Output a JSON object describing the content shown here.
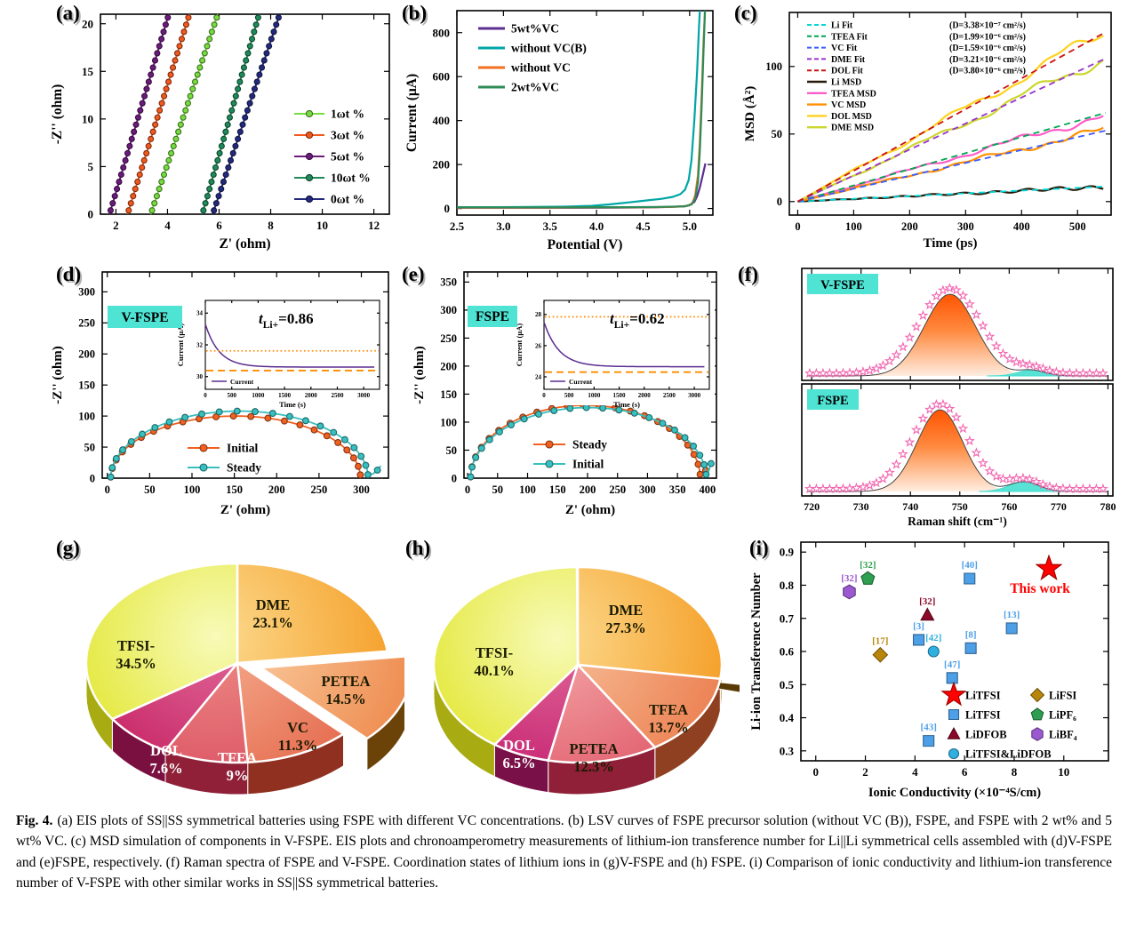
{
  "figure": {
    "caption_label": "Fig. 4.",
    "caption_text": "(a) EIS plots of SS||SS symmetrical batteries using FSPE with different VC concentrations. (b) LSV curves of FSPE precursor solution (without VC (B)), FSPE, and FSPE with 2 wt% and 5 wt% VC. (c) MSD simulation of components in V-FSPE. EIS plots and chronoamperometry measurements of lithium-ion transference number for Li||Li symmetrical cells assembled with (d)V-FSPE and (e)FSPE, respectively. (f) Raman spectra of FSPE and V-FSPE. Coordination states of lithium ions in (g)V-FSPE and (h) FSPE. (i) Comparison of ionic conductivity and lithium-ion transference number of V-FSPE with other similar works in SS||SS symmetrical batteries."
  },
  "panel_letters": {
    "a": "(a)",
    "b": "(b)",
    "c": "(c)",
    "d": "(d)",
    "e": "(e)",
    "f": "(f)",
    "g": "(g)",
    "h": "(h)",
    "i": "(i)"
  },
  "chart_data": [
    {
      "panel": "a",
      "type": "line",
      "xlabel": "Z' (ohm)",
      "ylabel": "-Z'' (ohm)",
      "xlim": [
        1.4,
        12.6
      ],
      "xticks": [
        2,
        4,
        6,
        8,
        10,
        12
      ],
      "ylim": [
        0,
        21
      ],
      "yticks": [
        0,
        5,
        10,
        15,
        20
      ],
      "series": [
        {
          "name": "1ωt %",
          "color": "#77DC3F",
          "x_at_y0": 3.35,
          "x_at_ymax": 5.95
        },
        {
          "name": "3ωt %",
          "color": "#F2591E",
          "x_at_y0": 2.45,
          "x_at_ymax": 4.85
        },
        {
          "name": "5ωt %",
          "color": "#6B1B7B",
          "x_at_y0": 1.75,
          "x_at_ymax": 4.05
        },
        {
          "name": "10ωt %",
          "color": "#1F8A5A",
          "x_at_y0": 5.35,
          "x_at_ymax": 7.55
        },
        {
          "name": "0ωt %",
          "color": "#232A7D",
          "x_at_y0": 5.75,
          "x_at_ymax": 8.35
        }
      ]
    },
    {
      "panel": "b",
      "type": "line",
      "xlabel": "Potential (V)",
      "ylabel": "Current (µA)",
      "xlim": [
        2.5,
        5.25
      ],
      "xticks": [
        2.5,
        3.0,
        3.5,
        4.0,
        4.5,
        5.0
      ],
      "xtick_labels": [
        "2.5",
        "3.0",
        "3.5",
        "4.0",
        "4.5",
        "5.0"
      ],
      "ylim": [
        -30,
        900
      ],
      "yticks": [
        0,
        200,
        400,
        600,
        800
      ],
      "series": [
        {
          "name": "5wt%VC",
          "color": "#5C2D91",
          "points": [
            [
              2.5,
              3
            ],
            [
              3.2,
              3
            ],
            [
              3.8,
              3
            ],
            [
              4.2,
              4
            ],
            [
              4.6,
              5
            ],
            [
              4.8,
              7
            ],
            [
              4.95,
              10
            ],
            [
              5.0,
              15
            ],
            [
              5.05,
              30
            ],
            [
              5.08,
              55
            ],
            [
              5.11,
              95
            ],
            [
              5.14,
              150
            ],
            [
              5.17,
              205
            ]
          ]
        },
        {
          "name": "without VC(B)",
          "color": "#00A5A5",
          "points": [
            [
              2.5,
              6
            ],
            [
              2.9,
              6
            ],
            [
              3.3,
              7
            ],
            [
              3.7,
              9
            ],
            [
              3.95,
              12
            ],
            [
              4.15,
              19
            ],
            [
              4.35,
              28
            ],
            [
              4.55,
              37
            ],
            [
              4.7,
              44
            ],
            [
              4.82,
              53
            ],
            [
              4.9,
              65
            ],
            [
              4.95,
              85
            ],
            [
              4.99,
              130
            ],
            [
              5.02,
              220
            ],
            [
              5.05,
              400
            ],
            [
              5.08,
              620
            ],
            [
              5.1,
              820
            ],
            [
              5.11,
              900
            ]
          ]
        },
        {
          "name": "without VC",
          "color": "#F07020",
          "points": [
            [
              2.5,
              4
            ],
            [
              3.5,
              4
            ],
            [
              4.2,
              5
            ],
            [
              4.6,
              6
            ],
            [
              4.85,
              8
            ],
            [
              4.98,
              12
            ],
            [
              5.03,
              25
            ],
            [
              5.06,
              60
            ],
            [
              5.09,
              150
            ],
            [
              5.11,
              300
            ],
            [
              5.13,
              520
            ],
            [
              5.15,
              760
            ],
            [
              5.165,
              900
            ]
          ]
        },
        {
          "name": "2wt%VC",
          "color": "#2E8B57",
          "points": [
            [
              2.5,
              5
            ],
            [
              3.5,
              5
            ],
            [
              4.3,
              6
            ],
            [
              4.7,
              7
            ],
            [
              4.95,
              10
            ],
            [
              5.02,
              18
            ],
            [
              5.06,
              45
            ],
            [
              5.09,
              120
            ],
            [
              5.11,
              260
            ],
            [
              5.13,
              470
            ],
            [
              5.15,
              720
            ],
            [
              5.165,
              900
            ]
          ]
        }
      ]
    },
    {
      "panel": "c",
      "type": "msd",
      "xlabel": "Time (ps)",
      "ylabel": "MSD (Å²)",
      "xlim": [
        -15,
        560
      ],
      "xticks": [
        0,
        100,
        200,
        300,
        400,
        500
      ],
      "ylim": [
        -10,
        140
      ],
      "yticks": [
        0,
        50,
        100
      ],
      "fits": [
        {
          "name": "Li Fit",
          "d_label": "(D=3.38×10⁻⁷ cm²/s)",
          "color": "#00D8D8",
          "msd_at_550": 11.2
        },
        {
          "name": "TFEA Fit",
          "d_label": "(D=1.99×10⁻⁶ cm²/s)",
          "color": "#00A550",
          "msd_at_550": 65.7
        },
        {
          "name": "VC Fit",
          "d_label": "(D=1.59×10⁻⁶ cm²/s)",
          "color": "#3A5BFF",
          "msd_at_550": 52.5
        },
        {
          "name": "DME Fit",
          "d_label": "(D=3.21×10⁻⁶ cm²/s)",
          "color": "#9932CC",
          "msd_at_550": 105.9
        },
        {
          "name": "DOL Fit",
          "d_label": "(D=3.80×10⁻⁶ cm²/s)",
          "color": "#CC1111",
          "msd_at_550": 125.4
        }
      ],
      "msd_series": [
        {
          "name": "Li MSD",
          "color": "#2B1A0A",
          "msd_at_550": 11.0
        },
        {
          "name": "TFEA MSD",
          "color": "#FF5CC8",
          "msd_at_550": 64.0
        },
        {
          "name": "VC MSD",
          "color": "#FF9000",
          "msd_at_550": 53.5
        },
        {
          "name": "DOL MSD",
          "color": "#FFD21E",
          "msd_at_550": 126.0
        },
        {
          "name": "DME MSD",
          "color": "#CBD62E",
          "msd_at_550": 107.0
        }
      ]
    },
    {
      "panel": "d",
      "type": "nyquist",
      "title": "V-FSPE",
      "transference": {
        "prefix": "t",
        "sub": "Li+",
        "value": "=0.86"
      },
      "xlabel": "Z' (ohm)",
      "ylabel": "-Z'' (ohm)",
      "xlim": [
        -6,
        332
      ],
      "xticks": [
        0,
        50,
        100,
        150,
        200,
        250,
        300
      ],
      "ylim": [
        0,
        332
      ],
      "yticks": [
        0,
        50,
        100,
        150,
        200,
        250,
        300
      ],
      "series": [
        {
          "name": "Initial",
          "color": "#F06020",
          "start": 4,
          "end": 299,
          "peak": 100,
          "tail": []
        },
        {
          "name": "Steady",
          "color": "#38BFBF",
          "start": 4,
          "end": 308,
          "peak": 108,
          "tail": [
            [
              314,
              7
            ],
            [
              319,
              13
            ],
            [
              323,
              20
            ]
          ]
        }
      ],
      "inset": {
        "xlabel": "Time (s)",
        "ylabel": "Current (µA)",
        "legend_label": "Current",
        "xlim": [
          0,
          3300
        ],
        "xticks": [
          0,
          500,
          1000,
          1500,
          2000,
          2500,
          3000
        ],
        "ylim": [
          29.2,
          34.8
        ],
        "yticks": [
          30,
          32,
          34
        ],
        "line_color": "#5C2D91",
        "ref_color": "#FF8C00",
        "i_start": 33.3,
        "i_steady": 30.6,
        "tau": 260,
        "dotted_ref": 31.62,
        "dashed_ref": 30.38
      }
    },
    {
      "panel": "e",
      "type": "nyquist",
      "title": "FSPE",
      "transference": {
        "prefix": "t",
        "sub": "Li+",
        "value": "=0.62"
      },
      "xlabel": "Z' (ohm)",
      "ylabel": "-Z'' (ohm)",
      "xlim": [
        -6,
        415
      ],
      "xticks": [
        0,
        50,
        100,
        150,
        200,
        250,
        300,
        350,
        400
      ],
      "ylim": [
        0,
        368
      ],
      "yticks": [
        0,
        50,
        100,
        150,
        200,
        250,
        300,
        350
      ],
      "series": [
        {
          "name": "Steady",
          "color": "#F06020",
          "start": 5,
          "end": 388,
          "peak": 130,
          "tail": [
            [
              392,
              6
            ],
            [
              397,
              14
            ]
          ]
        },
        {
          "name": "Initial",
          "color": "#38BFBF",
          "start": 5,
          "end": 398,
          "peak": 126,
          "tail": [
            [
              402,
              12
            ],
            [
              406,
              26
            ]
          ]
        }
      ],
      "inset": {
        "xlabel": "Time (s)",
        "ylabel": "Current (µA)",
        "legend_label": "Current",
        "xlim": [
          0,
          3300
        ],
        "xticks": [
          0,
          500,
          1000,
          1500,
          2000,
          2500,
          3000
        ],
        "ylim": [
          23.2,
          28.9
        ],
        "yticks": [
          24,
          26,
          28
        ],
        "line_color": "#5C2D91",
        "ref_color": "#FF8C00",
        "i_start": 27.5,
        "i_steady": 24.65,
        "tau": 300,
        "dotted_ref": 27.85,
        "dashed_ref": 24.3
      }
    },
    {
      "panel": "f",
      "type": "raman",
      "xlabel": "Raman shift (cm⁻¹)",
      "xlim": [
        718,
        781
      ],
      "xticks": [
        720,
        730,
        740,
        750,
        760,
        770,
        780
      ],
      "spectra": [
        {
          "name": "V-FSPE",
          "peak_center": 748,
          "peak_sigma": 5.2,
          "data_sigma": 6.2,
          "shoulder_center": 764.5,
          "shoulder_sigma": 2.8,
          "shoulder_amp": 0.07
        },
        {
          "name": "FSPE",
          "peak_center": 746,
          "peak_sigma": 4.6,
          "data_sigma": 5.6,
          "shoulder_center": 763,
          "shoulder_sigma": 3.0,
          "shoulder_amp": 0.12
        }
      ],
      "colors": {
        "fill_top": "#FF5400",
        "fill_mid": "#FF8A40",
        "fill_bottom": "#FFEDE0",
        "stars": "#F266B0",
        "shoulder": "#45DFD0",
        "fit_line": "#444444",
        "label_bg": "#4FE3D4"
      }
    },
    {
      "panel": "g",
      "type": "pie",
      "slices": [
        {
          "name": "DME",
          "pct": 23.1,
          "display": "23.1%",
          "inner": "#FCDA8E",
          "outer": "#F5A02A",
          "side": "#B06A10",
          "label_color": "#1a1a00"
        },
        {
          "name": "PETEA",
          "pct": 14.5,
          "display": "14.5%",
          "inner": "#FACDA0",
          "outer": "#EE8C50",
          "side": "#6B4208",
          "label_color": "#1a1a00",
          "exploded": true
        },
        {
          "name": "VC",
          "pct": 11.3,
          "display": "11.3%",
          "inner": "#F6AE90",
          "outer": "#E4674B",
          "side": "#8F3020",
          "label_color": "#1a1a00"
        },
        {
          "name": "TFEA",
          "pct": 9.0,
          "display": "9%",
          "inner": "#EE8C84",
          "outer": "#D84A60",
          "side": "#8F2038",
          "label_color": "#ffffff"
        },
        {
          "name": "DOL",
          "pct": 7.6,
          "display": "7.6%",
          "inner": "#E06898",
          "outer": "#C2185B",
          "side": "#7A1040",
          "label_color": "#ffffff"
        },
        {
          "name": "TFSI-",
          "pct": 34.5,
          "display": "34.5%",
          "inner": "#F8FAB8",
          "outer": "#DFE41F",
          "side": "#A8AC12",
          "label_color": "#1a1a00"
        }
      ],
      "sliver": {
        "side": "#5A3A06"
      }
    },
    {
      "panel": "h",
      "type": "pie",
      "slices": [
        {
          "name": "DME",
          "pct": 27.3,
          "display": "27.3%",
          "inner": "#FCDA8E",
          "outer": "#F5A02A",
          "side": "#B06A10",
          "label_color": "#1a1a00"
        },
        {
          "name": "TFEA",
          "pct": 13.7,
          "display": "13.7%",
          "inner": "#F8C09A",
          "outer": "#EC8254",
          "side": "#8F4020",
          "label_color": "#1a1a00"
        },
        {
          "name": "PETEA",
          "pct": 12.3,
          "display": "12.3%",
          "inner": "#F4A8A8",
          "outer": "#E05A6A",
          "side": "#8F2038",
          "label_color": "#1a1a00"
        },
        {
          "name": "DOL",
          "pct": 6.5,
          "display": "6.5%",
          "inner": "#E06898",
          "outer": "#C2186B",
          "side": "#7A1048",
          "label_color": "#ffffff"
        },
        {
          "name": "TFSI-",
          "pct": 40.1,
          "display": "40.1%",
          "inner": "#F8FAB8",
          "outer": "#DFE41F",
          "side": "#A8AC12",
          "label_color": "#1a1a00"
        }
      ],
      "sliver": {
        "side": "#5A3A06"
      }
    },
    {
      "panel": "i",
      "type": "scatter",
      "xlabel": "Ionic Conductivity (×10⁻⁴S/cm)",
      "ylabel": "Li-ion Transference Number",
      "xlim": [
        -0.6,
        11.8
      ],
      "xticks": [
        0,
        2,
        4,
        6,
        8,
        10
      ],
      "ylim": [
        0.27,
        0.93
      ],
      "yticks": [
        0.3,
        0.4,
        0.5,
        0.6,
        0.7,
        0.8,
        0.9
      ],
      "ytick_labels": [
        "0.3",
        "0.4",
        "0.5",
        "0.6",
        "0.7",
        "0.8",
        "0.9"
      ],
      "points": [
        {
          "marker": "star",
          "color": "#FF0000",
          "x": 9.4,
          "y": 0.85,
          "annotation": "This work"
        },
        {
          "ref": "[40]",
          "marker": "square",
          "color": "#4D9FE8",
          "x": 6.2,
          "y": 0.82
        },
        {
          "ref": "[32]",
          "marker": "pentagon",
          "color": "#2E9E50",
          "x": 2.1,
          "y": 0.82
        },
        {
          "ref": "[32]",
          "marker": "hexagon",
          "color": "#9B59D0",
          "x": 1.35,
          "y": 0.78
        },
        {
          "ref": "[32]",
          "marker": "triangle",
          "color": "#8B0A2A",
          "x": 4.5,
          "y": 0.71
        },
        {
          "ref": "[13]",
          "marker": "square",
          "color": "#4D9FE8",
          "x": 7.9,
          "y": 0.67
        },
        {
          "ref": "[3]",
          "marker": "square",
          "color": "#4D9FE8",
          "x": 4.15,
          "y": 0.635
        },
        {
          "ref": "[8]",
          "marker": "square",
          "color": "#4D9FE8",
          "x": 6.25,
          "y": 0.61
        },
        {
          "ref": "[42]",
          "marker": "circle",
          "color": "#30B0E0",
          "x": 4.75,
          "y": 0.6
        },
        {
          "ref": "[17]",
          "marker": "diamond",
          "color": "#B8860B",
          "x": 2.6,
          "y": 0.59
        },
        {
          "ref": "[47]",
          "marker": "square",
          "color": "#4D9FE8",
          "x": 5.5,
          "y": 0.52
        },
        {
          "ref": "[43]",
          "marker": "square",
          "color": "#4D9FE8",
          "x": 4.55,
          "y": 0.33
        }
      ],
      "legend": [
        {
          "label": "LiTFSI",
          "marker": "star",
          "color": "#FF0000"
        },
        {
          "label": "LiTFSI",
          "marker": "square",
          "color": "#4D9FE8"
        },
        {
          "label": "LiDFOB",
          "marker": "triangle",
          "color": "#8B0A2A"
        },
        {
          "label": "LiTFSI&LiDFOB",
          "marker": "circle",
          "color": "#30B0E0"
        },
        {
          "label": "LiFSI",
          "marker": "diamond",
          "color": "#B8860B"
        },
        {
          "label": "LiPF₆",
          "marker": "pentagon",
          "color": "#2E9E50"
        },
        {
          "label": "LiBF₄",
          "marker": "hexagon",
          "color": "#9B59D0"
        }
      ]
    }
  ]
}
